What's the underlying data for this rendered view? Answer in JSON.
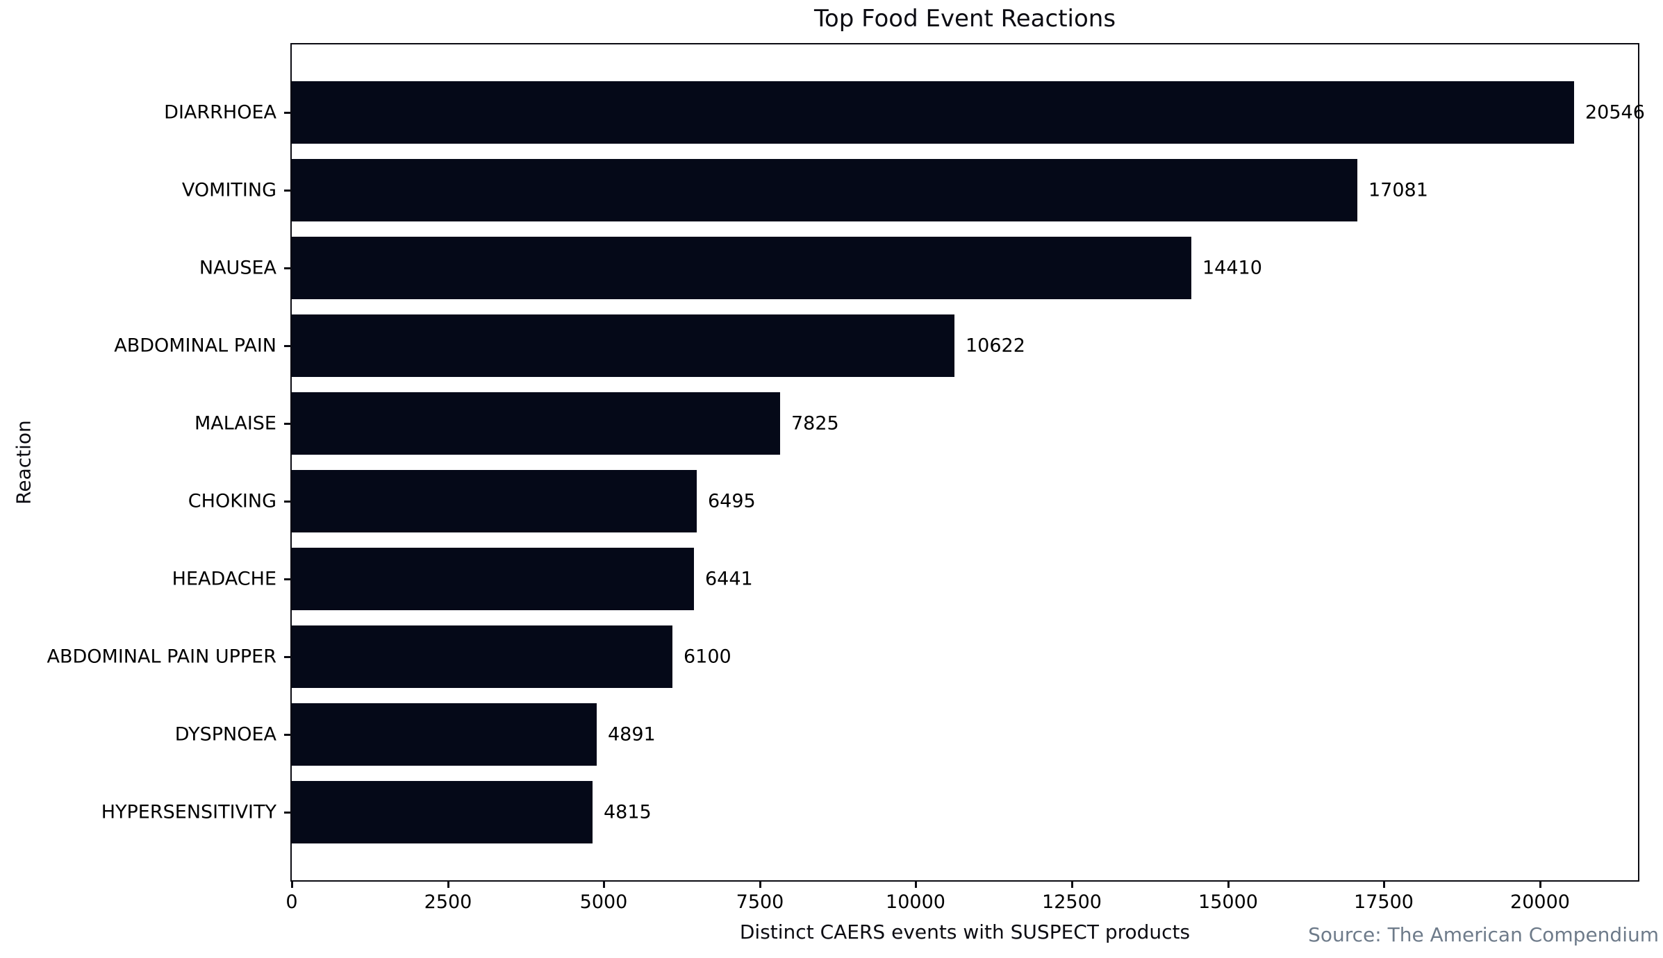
{
  "chart_data": {
    "type": "bar",
    "orientation": "horizontal",
    "title": "Top Food Event Reactions",
    "xlabel": "Distinct CAERS events with SUSPECT products",
    "ylabel": "Reaction",
    "source": "Source: The American Compendium",
    "categories": [
      "DIARRHOEA",
      "VOMITING",
      "NAUSEA",
      "ABDOMINAL PAIN",
      "MALAISE",
      "CHOKING",
      "HEADACHE",
      "ABDOMINAL PAIN UPPER",
      "DYSPNOEA",
      "HYPERSENSITIVITY"
    ],
    "values": [
      20546,
      17081,
      14410,
      10622,
      7825,
      6495,
      6441,
      6100,
      4891,
      4815
    ],
    "xticks": [
      0,
      2500,
      5000,
      7500,
      10000,
      12500,
      15000,
      17500,
      20000
    ],
    "xlim": [
      0,
      21573
    ],
    "grid": false,
    "legend": "none",
    "bar_color": "#050918",
    "axis_color": "#0b0b12",
    "text_color": "#000000",
    "source_color": "#6e7b8a"
  }
}
